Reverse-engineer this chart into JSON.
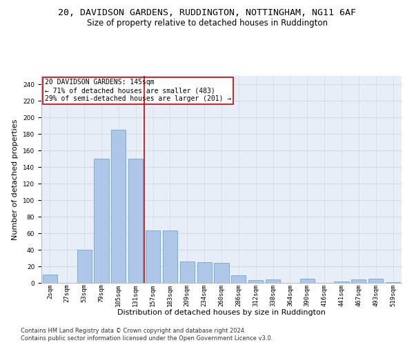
{
  "title": "20, DAVIDSON GARDENS, RUDDINGTON, NOTTINGHAM, NG11 6AF",
  "subtitle": "Size of property relative to detached houses in Ruddington",
  "xlabel": "Distribution of detached houses by size in Ruddington",
  "ylabel": "Number of detached properties",
  "bar_labels": [
    "2sqm",
    "27sqm",
    "53sqm",
    "79sqm",
    "105sqm",
    "131sqm",
    "157sqm",
    "183sqm",
    "209sqm",
    "234sqm",
    "260sqm",
    "286sqm",
    "312sqm",
    "338sqm",
    "364sqm",
    "390sqm",
    "416sqm",
    "441sqm",
    "467sqm",
    "493sqm",
    "519sqm"
  ],
  "bar_values": [
    10,
    0,
    40,
    150,
    185,
    150,
    63,
    63,
    26,
    25,
    24,
    9,
    3,
    4,
    0,
    5,
    0,
    2,
    4,
    5,
    1
  ],
  "bar_color": "#aec6e8",
  "bar_edge_color": "#5a9fc8",
  "reference_line_x": 5.5,
  "annotation_line1": "20 DAVIDSON GARDENS: 145sqm",
  "annotation_line2": "← 71% of detached houses are smaller (483)",
  "annotation_line3": "29% of semi-detached houses are larger (201) →",
  "annotation_box_color": "#ffffff",
  "annotation_box_edge": "#cc0000",
  "vline_color": "#cc0000",
  "ylim": [
    0,
    250
  ],
  "yticks": [
    0,
    20,
    40,
    60,
    80,
    100,
    120,
    140,
    160,
    180,
    200,
    220,
    240
  ],
  "grid_color": "#d0d8e8",
  "bg_color": "#e8eef8",
  "footer_line1": "Contains HM Land Registry data © Crown copyright and database right 2024.",
  "footer_line2": "Contains public sector information licensed under the Open Government Licence v3.0.",
  "title_fontsize": 9.5,
  "subtitle_fontsize": 8.5,
  "xlabel_fontsize": 8,
  "ylabel_fontsize": 8,
  "tick_fontsize": 6.5,
  "annotation_fontsize": 7,
  "footer_fontsize": 6
}
